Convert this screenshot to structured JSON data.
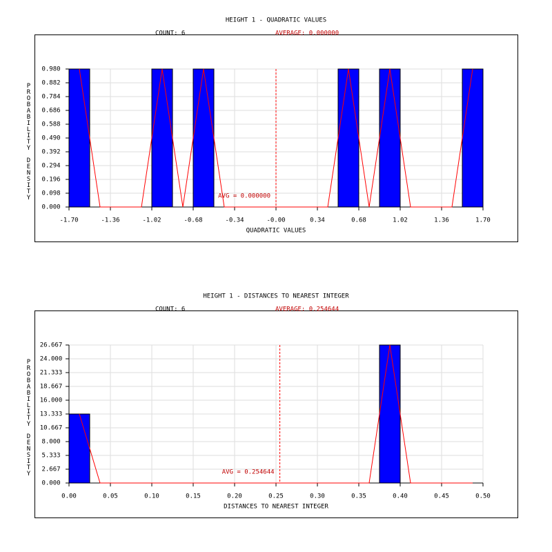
{
  "chart_data": [
    {
      "type": "histogram",
      "title": "HEIGHT 1 - QUADRATIC VALUES",
      "count_label": "COUNT: 6",
      "average_label": "AVERAGE: 0.000000",
      "avg_label": "AVG = 0.000000",
      "average": 0,
      "xlabel": "QUADRATIC VALUES",
      "ylabel": "PROBABILITY DENSITY",
      "bins": [
        -1.7,
        -1.53,
        -1.36,
        -1.19,
        -1.02,
        -0.85,
        -0.68,
        -0.51,
        -0.34,
        -0.17,
        0,
        0.17,
        0.34,
        0.51,
        0.68,
        0.85,
        1.02,
        1.19,
        1.36,
        1.53,
        1.7
      ],
      "values": [
        0.98,
        0,
        0,
        0,
        0.98,
        0,
        0.98,
        0,
        0,
        0,
        0,
        0,
        0,
        0.98,
        0,
        0.98,
        0,
        0,
        0,
        0.98
      ],
      "color": "#0000ff",
      "line_color": "#ff0000",
      "grid": true,
      "xlim": [
        -1.7,
        1.7
      ],
      "ylim": [
        0,
        0.98
      ],
      "xticks": [
        {
          "value": -1.7,
          "label": "-1.70"
        },
        {
          "value": -1.36,
          "label": "-1.36"
        },
        {
          "value": -1.02,
          "label": "-1.02"
        },
        {
          "value": -0.68,
          "label": "-0.68"
        },
        {
          "value": -0.34,
          "label": "-0.34"
        },
        {
          "value": 0,
          "label": "-0.00"
        },
        {
          "value": 0.34,
          "label": "0.34"
        },
        {
          "value": 0.68,
          "label": "0.68"
        },
        {
          "value": 1.02,
          "label": "1.02"
        },
        {
          "value": 1.36,
          "label": "1.36"
        },
        {
          "value": 1.7,
          "label": "1.70"
        }
      ],
      "yticks": [
        {
          "value": 0,
          "label": "0.000"
        },
        {
          "value": 0.098,
          "label": "0.098"
        },
        {
          "value": 0.196,
          "label": "0.196"
        },
        {
          "value": 0.294,
          "label": "0.294"
        },
        {
          "value": 0.392,
          "label": "0.392"
        },
        {
          "value": 0.49,
          "label": "0.490"
        },
        {
          "value": 0.588,
          "label": "0.588"
        },
        {
          "value": 0.686,
          "label": "0.686"
        },
        {
          "value": 0.784,
          "label": "0.784"
        },
        {
          "value": 0.882,
          "label": "0.882"
        },
        {
          "value": 0.98,
          "label": "0.980"
        }
      ]
    },
    {
      "type": "histogram",
      "title": "HEIGHT 1 - DISTANCES TO NEAREST INTEGER",
      "count_label": "COUNT: 6",
      "average_label": "AVERAGE: 0.254644",
      "avg_label": "AVG = 0.254644",
      "average": 0.254644,
      "xlabel": "DISTANCES TO NEAREST INTEGER",
      "ylabel": "PROBABILITY DENSITY",
      "bins": [
        0,
        0.025,
        0.05,
        0.075,
        0.1,
        0.125,
        0.15,
        0.175,
        0.2,
        0.225,
        0.25,
        0.275,
        0.3,
        0.325,
        0.35,
        0.375,
        0.4,
        0.425,
        0.45,
        0.475,
        0.5
      ],
      "values": [
        13.333,
        0,
        0,
        0,
        0,
        0,
        0,
        0,
        0,
        0,
        0,
        0,
        0,
        0,
        0,
        26.667,
        0,
        0,
        0,
        0
      ],
      "color": "#0000ff",
      "line_color": "#ff0000",
      "grid": true,
      "xlim": [
        0,
        0.5
      ],
      "ylim": [
        0,
        26.667
      ],
      "xticks": [
        {
          "value": 0,
          "label": "0.00"
        },
        0.05,
        {
          "value": 0.1,
          "label": "0.10"
        },
        0.15,
        {
          "value": 0.2,
          "label": "0.20"
        },
        0.25,
        {
          "value": 0.3,
          "label": "0.30"
        },
        0.35,
        {
          "value": 0.4,
          "label": "0.40"
        },
        0.45,
        {
          "value": 0.5,
          "label": "0.50"
        }
      ],
      "yticks": [
        {
          "value": 0,
          "label": "0.000"
        },
        2.667,
        5.333,
        {
          "value": 8,
          "label": "8.000"
        },
        10.667,
        13.333,
        {
          "value": 16,
          "label": "16.000"
        },
        18.667,
        21.333,
        {
          "value": 24,
          "label": "24.000"
        },
        26.667
      ]
    }
  ]
}
